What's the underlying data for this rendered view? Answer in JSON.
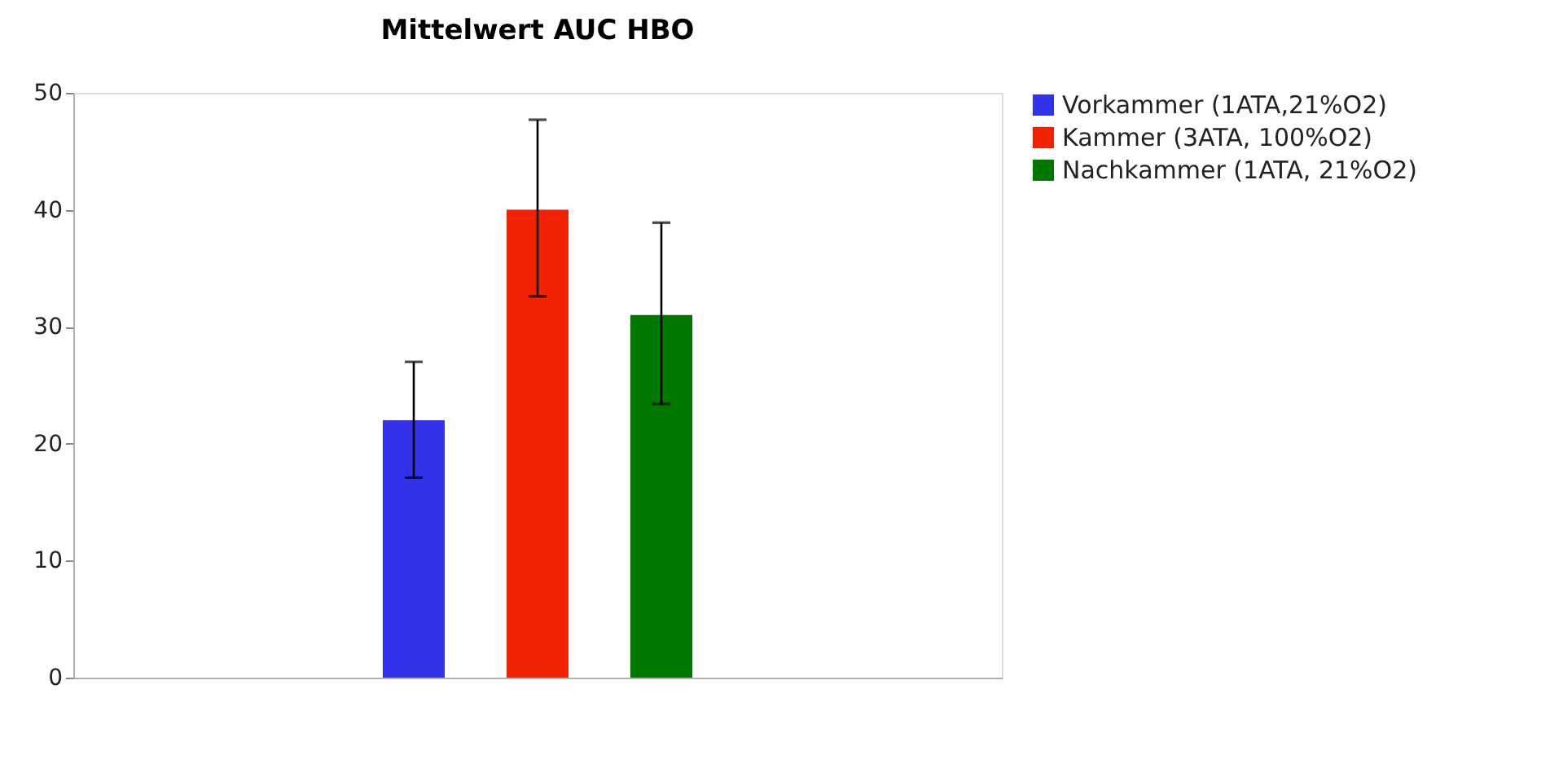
{
  "chart_data": {
    "type": "bar",
    "title": "Mittelwert AUC HBO",
    "categories": [
      null
    ],
    "series": [
      {
        "name": "Vorkammer (1ATA,21%O2)",
        "color": "#3232e8",
        "values": [
          22
        ],
        "errors": [
          [
            17.1,
            27.0
          ]
        ]
      },
      {
        "name": "Kammer (3ATA, 100%O2)",
        "color": "#f02200",
        "values": [
          40
        ],
        "errors": [
          [
            32.6,
            47.7
          ]
        ]
      },
      {
        "name": "Nachkammer (1ATA, 21%O2)",
        "color": "#007800",
        "values": [
          31
        ],
        "errors": [
          [
            23.4,
            38.9
          ]
        ]
      }
    ],
    "ylim": [
      0,
      50
    ],
    "yticks": [
      0,
      10,
      20,
      30,
      40,
      50
    ],
    "grid": false,
    "legend": "right",
    "tick_labels": "y"
  }
}
